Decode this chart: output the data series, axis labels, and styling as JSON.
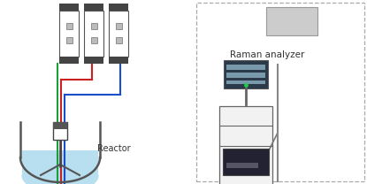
{
  "bg_color": "#ffffff",
  "reactor_label": "Reactor",
  "analyzer_label": "Raman analyzer",
  "line_green": "#1a9e3a",
  "line_red": "#cc2020",
  "line_blue": "#1a4fcc",
  "device_fill": "#ffffff",
  "device_border": "#555555",
  "device_dark": "#444444",
  "liquid_color": "#b8dff0",
  "dashed_border": "#aaaaaa",
  "text_color": "#333333",
  "cart_fill": "#f2f2f2",
  "cart_dark": "#222233",
  "screen_dark": "#2a3a4a",
  "gray_box_fill": "#cccccc"
}
